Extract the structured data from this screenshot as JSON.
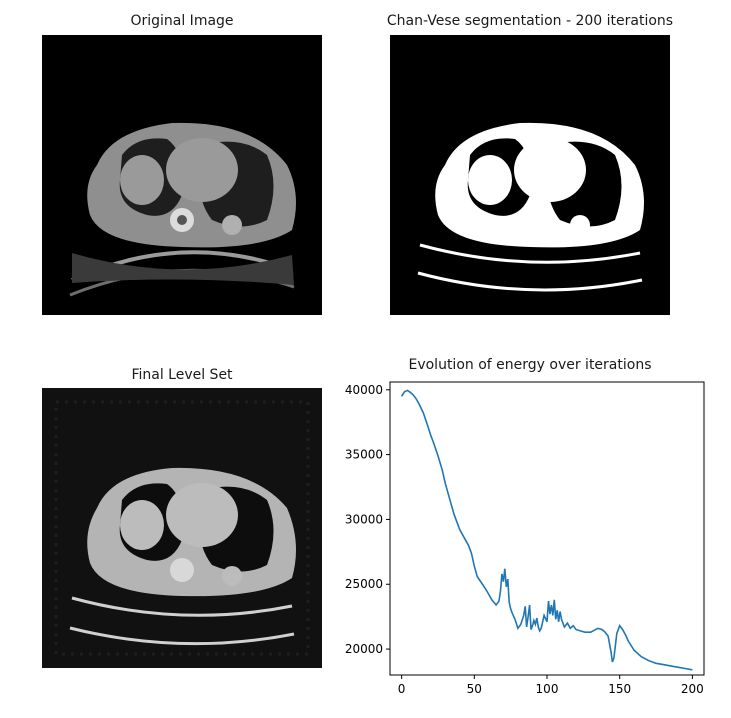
{
  "panels": {
    "original": {
      "title": "Original Image"
    },
    "segmentation": {
      "title": "Chan-Vese segmentation - 200 iterations"
    },
    "level_set": {
      "title": "Final Level Set"
    },
    "energy": {
      "title": "Evolution of energy over iterations"
    }
  },
  "colors": {
    "line": "#1f77b4",
    "background": "#000000",
    "tissue": "#9a9a9a",
    "bright": "#ffffff"
  },
  "chart_data": {
    "type": "line",
    "title": "Evolution of energy over iterations",
    "xlabel": "",
    "ylabel": "",
    "xlim": [
      -8,
      208
    ],
    "ylim": [
      18000,
      40600
    ],
    "x_ticks": [
      0,
      50,
      100,
      150,
      200
    ],
    "y_ticks": [
      20000,
      25000,
      30000,
      35000,
      40000
    ],
    "grid": false,
    "series": [
      {
        "x": [
          0,
          2,
          4,
          6,
          8,
          10,
          12,
          15,
          18,
          20,
          22,
          25,
          28,
          30,
          33,
          36,
          40,
          44,
          46,
          48,
          50,
          52,
          55,
          58,
          60,
          62,
          65,
          67,
          68,
          69,
          70,
          71,
          72,
          73,
          74,
          75,
          76,
          78,
          80,
          82,
          84,
          85,
          86,
          87,
          88,
          89,
          90,
          91,
          92,
          93,
          94,
          95,
          96,
          98,
          100,
          101,
          102,
          103,
          104,
          105,
          106,
          107,
          108,
          109,
          110,
          112,
          114,
          116,
          118,
          120,
          123,
          126,
          130,
          135,
          138,
          140,
          142,
          144,
          145,
          146,
          148,
          150,
          152,
          154,
          156,
          160,
          165,
          170,
          175,
          180,
          185,
          190,
          195,
          200
        ],
        "y": [
          39500,
          39850,
          39950,
          39800,
          39600,
          39300,
          38900,
          38200,
          37200,
          36500,
          35900,
          34900,
          33800,
          32800,
          31600,
          30400,
          29200,
          28400,
          28000,
          27400,
          26400,
          25600,
          25100,
          24600,
          24200,
          23800,
          23400,
          23700,
          24500,
          25800,
          25200,
          26200,
          24800,
          25400,
          23600,
          23100,
          22800,
          22300,
          21600,
          21900,
          22600,
          23300,
          21700,
          22500,
          23400,
          21500,
          21800,
          22200,
          21900,
          22400,
          21700,
          21400,
          21600,
          22600,
          22100,
          23700,
          22700,
          23400,
          22600,
          23800,
          22300,
          23000,
          22100,
          22900,
          22300,
          21700,
          22000,
          21600,
          21800,
          21500,
          21400,
          21300,
          21300,
          21600,
          21500,
          21300,
          21000,
          19800,
          19000,
          19300,
          21200,
          21800,
          21500,
          21100,
          20600,
          19900,
          19400,
          19100,
          18900,
          18800,
          18700,
          18600,
          18500,
          18400
        ]
      }
    ]
  }
}
